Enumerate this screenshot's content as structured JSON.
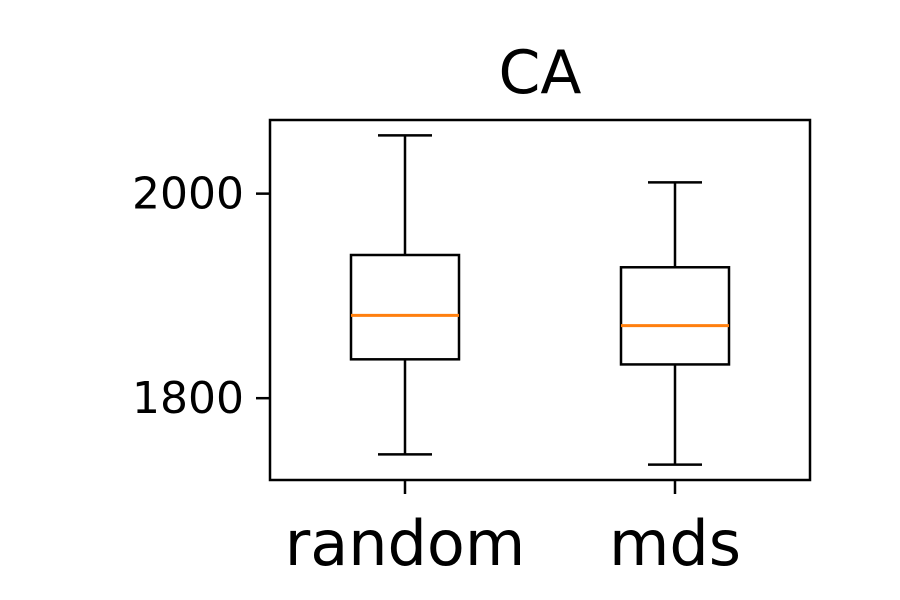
{
  "chart_data": {
    "type": "box",
    "title": "CA",
    "xlabel": "",
    "ylabel": "",
    "categories": [
      "random",
      "mds"
    ],
    "boxes": [
      {
        "name": "random",
        "whisker_low": 1745,
        "q1": 1838,
        "median": 1881,
        "q3": 1940,
        "whisker_high": 2057
      },
      {
        "name": "mds",
        "whisker_low": 1735,
        "q1": 1833,
        "median": 1871,
        "q3": 1928,
        "whisker_high": 2011
      }
    ],
    "y_ticks": [
      1800,
      2000
    ],
    "y_tick_labels": [
      "1800",
      "2000"
    ],
    "ylim": [
      1720,
      2072
    ],
    "grid": false,
    "colors": {
      "box": "#000000",
      "median": "#ff7f0e",
      "axes": "#000000"
    }
  }
}
